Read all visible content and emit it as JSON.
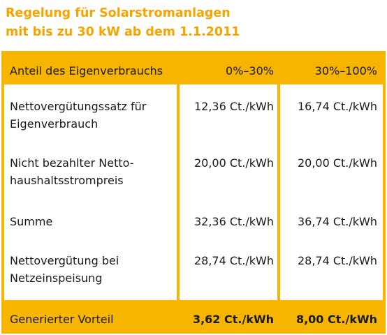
{
  "title": {
    "line1": "Regelung für Solarstromanlagen",
    "line2": "mit bis zu 30 kW ab dem 1.1.2011"
  },
  "table": {
    "header": {
      "label": "Anteil des Eigenverbrauchs",
      "col1": "0%–30%",
      "col2": "30%–100%"
    },
    "rows": [
      {
        "label_line1": "Nettovergütungssatz für",
        "label_line2": "Eigenverbrauch",
        "col1": "12,36 Ct./kWh",
        "col2": "16,74 Ct./kWh"
      },
      {
        "label_line1": "Nicht bezahlter Netto-",
        "label_line2": "haushaltsstrompreis",
        "col1": "20,00 Ct./kWh",
        "col2": "20,00 Ct./kWh"
      },
      {
        "label_line1": "Summe",
        "label_line2": "",
        "col1": "32,36 Ct./kWh",
        "col2": "36,74 Ct./kWh"
      },
      {
        "label_line1": "Nettovergütung bei",
        "label_line2": "Netzeinspeisung",
        "col1": "28,74 Ct./kWh",
        "col2": "28,74 Ct./kWh"
      }
    ],
    "footer": {
      "label": "Generierter Vorteil",
      "col1": "3,62 Ct./kWh",
      "col2": "8,00 Ct./kWh"
    }
  },
  "colors": {
    "accent": "#f7b500",
    "title": "#f5a400"
  }
}
